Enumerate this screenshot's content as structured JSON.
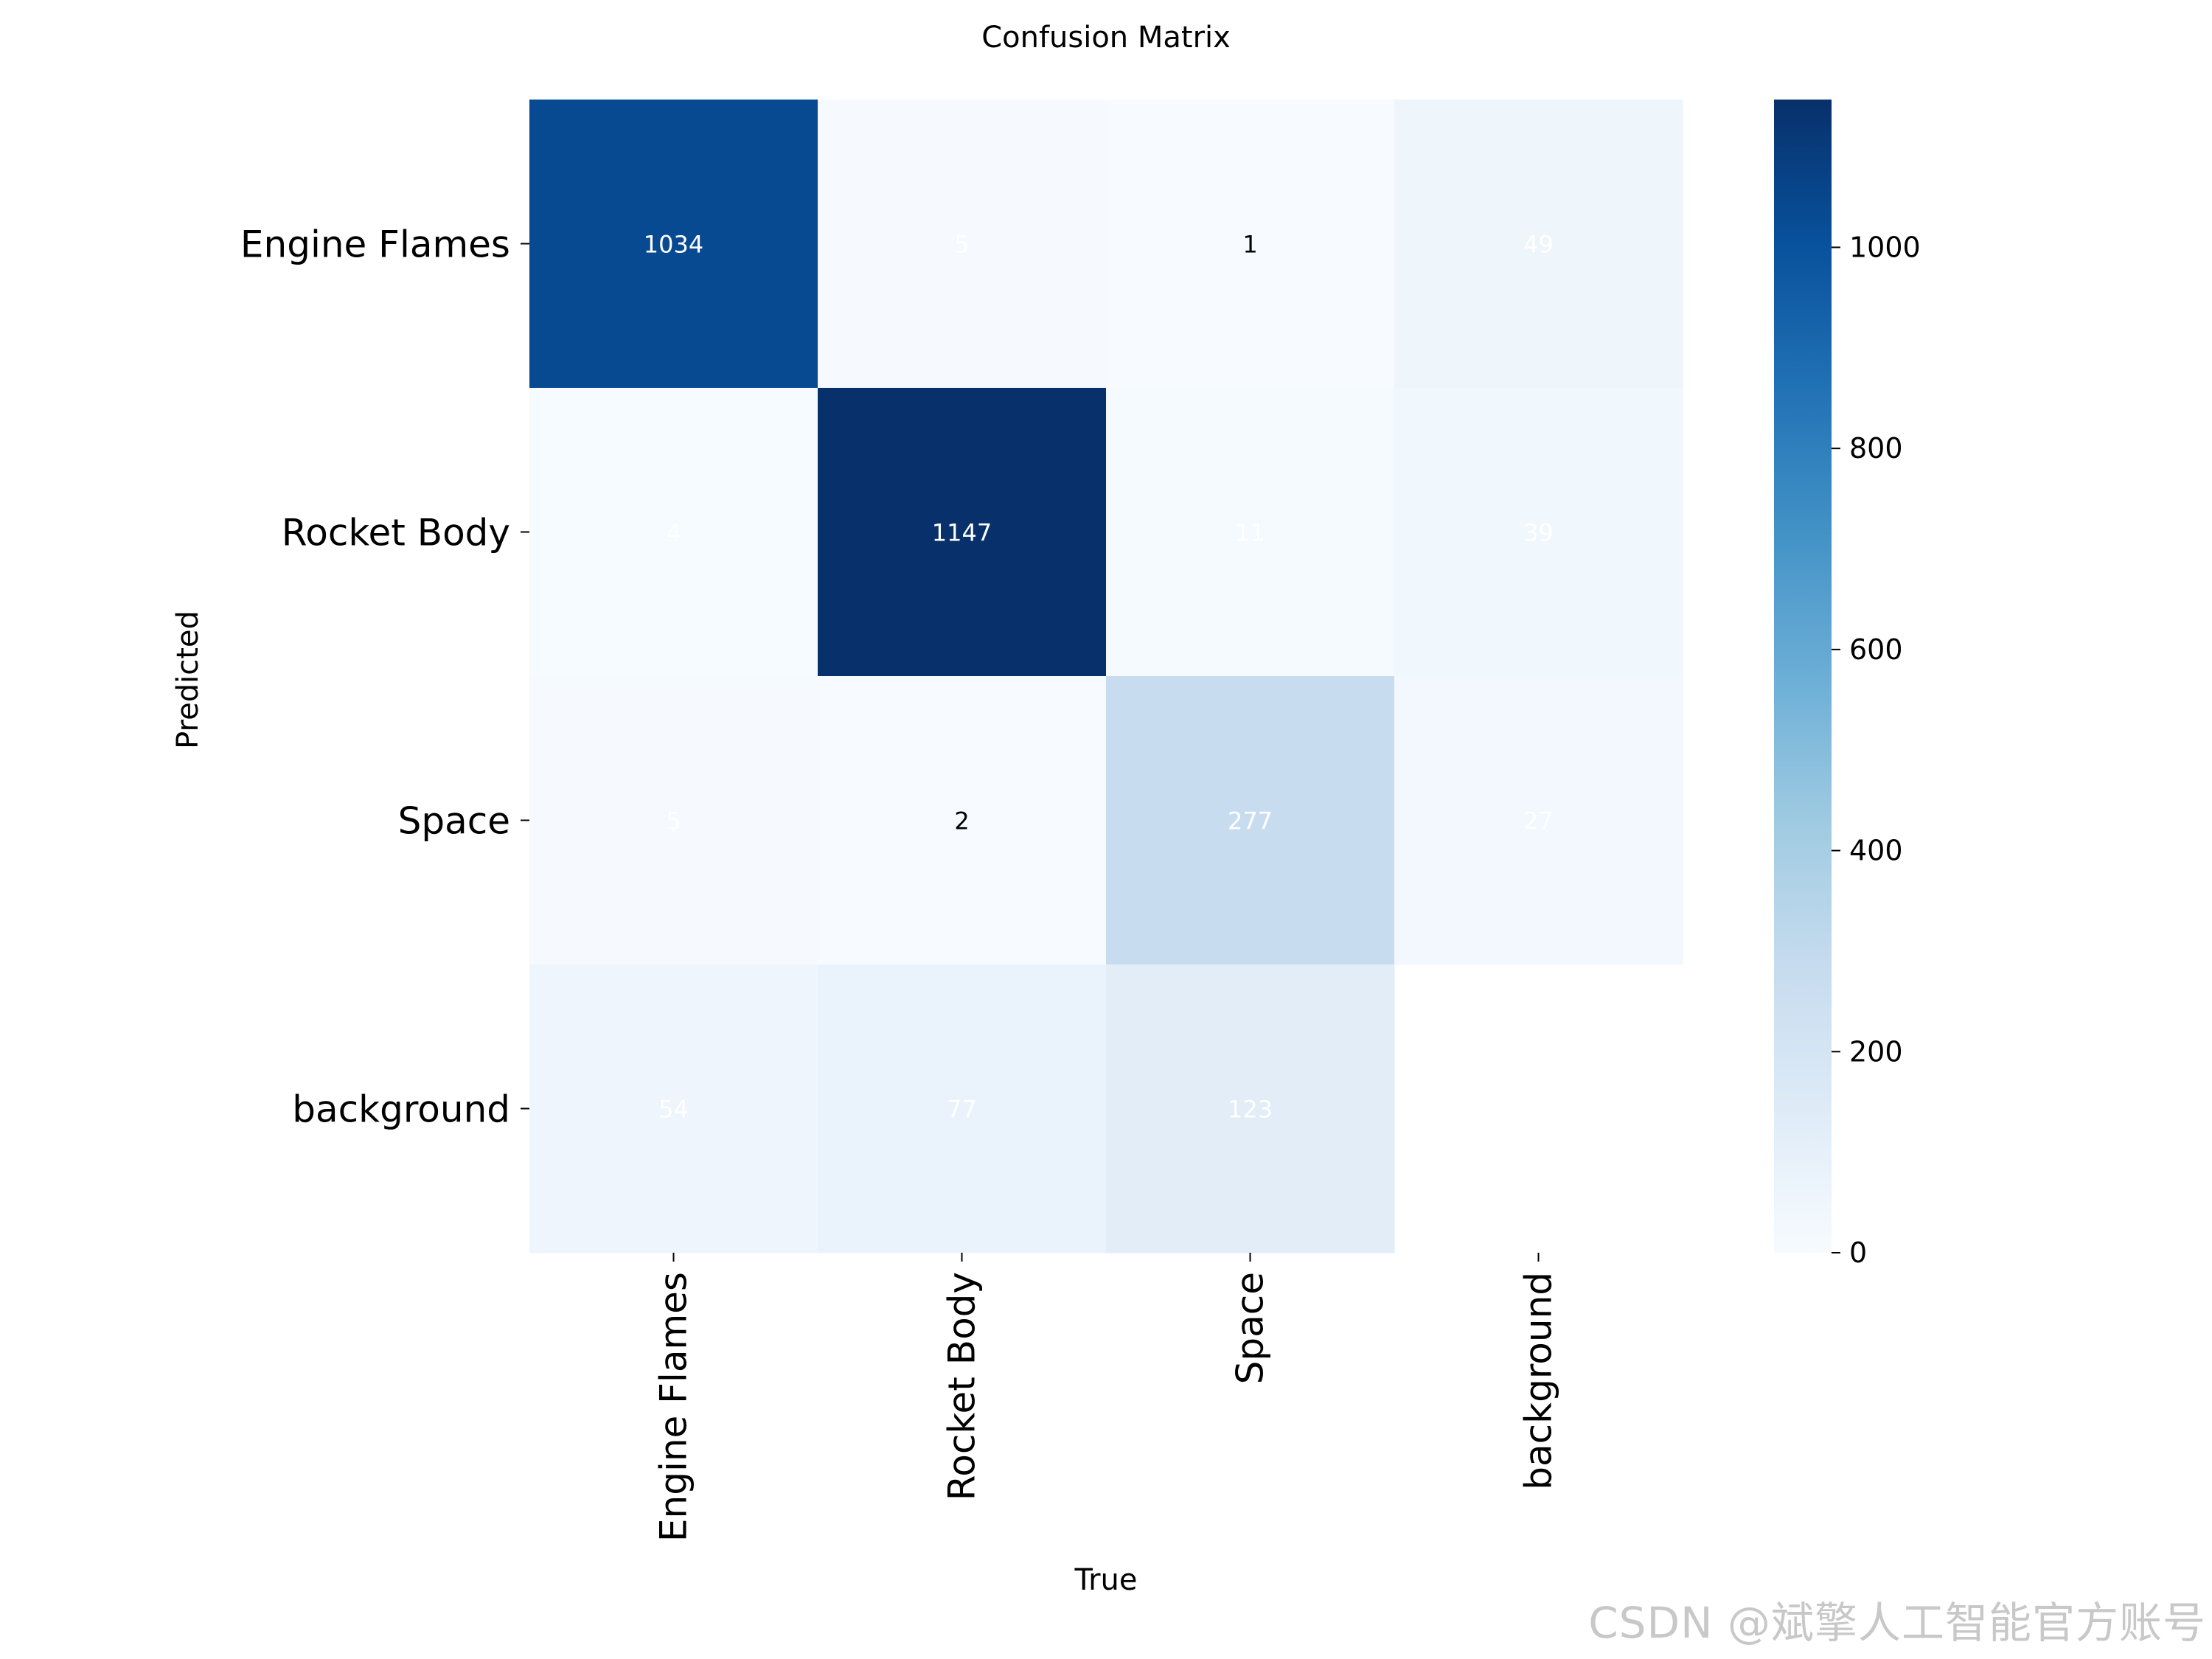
{
  "chart_data": {
    "type": "heatmap",
    "title": "Confusion Matrix",
    "xlabel": "True",
    "ylabel": "Predicted",
    "x_categories": [
      "Engine Flames",
      "Rocket Body",
      "Space",
      "background"
    ],
    "y_categories": [
      "Engine Flames",
      "Rocket Body",
      "Space",
      "background"
    ],
    "matrix": [
      [
        1034,
        5,
        1,
        49
      ],
      [
        4,
        1147,
        11,
        39
      ],
      [
        5,
        2,
        277,
        27
      ],
      [
        54,
        77,
        123,
        null
      ]
    ],
    "colormap": "Blues",
    "colorbar": {
      "min": 0,
      "max": 1147,
      "ticks": [
        0,
        200,
        400,
        600,
        800,
        1000
      ]
    },
    "grid": false
  },
  "watermark": "CSDN @斌擎人工智能官方账号"
}
